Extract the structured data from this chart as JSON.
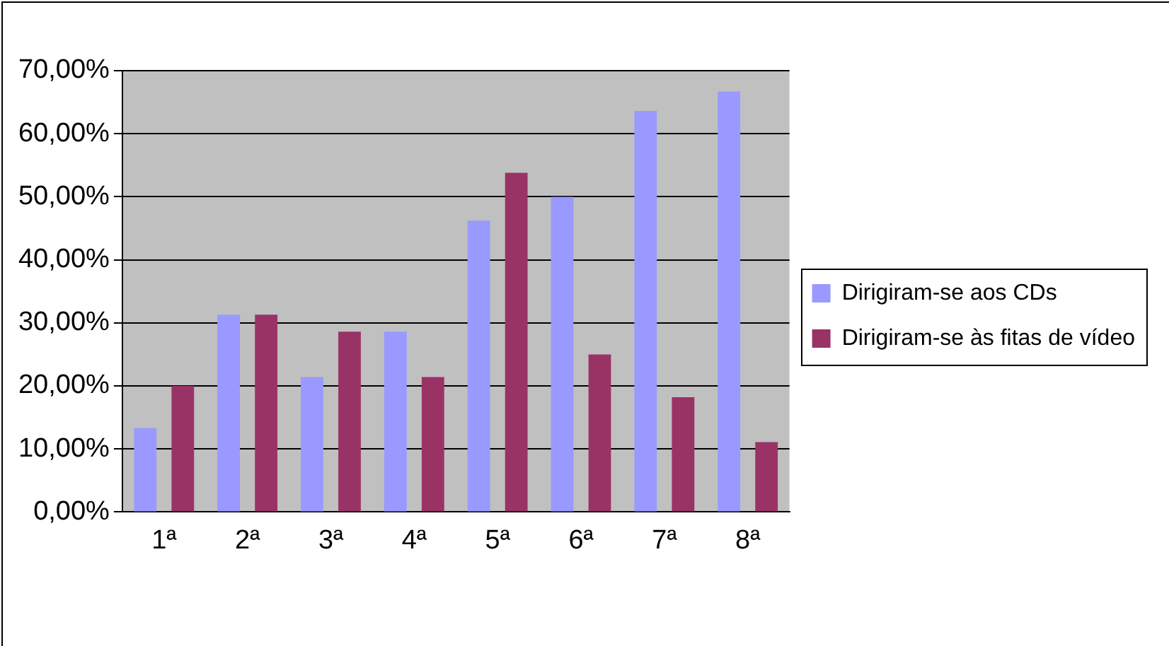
{
  "chart_data": {
    "type": "bar",
    "categories": [
      "1ª",
      "2ª",
      "3ª",
      "4ª",
      "5ª",
      "6ª",
      "7ª",
      "8ª"
    ],
    "series": [
      {
        "name": "Dirigiram-se aos CDs",
        "color": "#9999ff",
        "values": [
          13.3,
          31.3,
          21.4,
          28.6,
          46.2,
          50,
          63.6,
          66.7
        ]
      },
      {
        "name": "Dirigiram-se às fitas de vídeo",
        "color": "#993366",
        "values": [
          20,
          31.3,
          28.6,
          21.4,
          53.8,
          25,
          18.2,
          11.1
        ]
      }
    ],
    "ylim": [
      0,
      70
    ],
    "yticks": [
      {
        "value": 0,
        "label": "0,00%"
      },
      {
        "value": 10,
        "label": "10,00%"
      },
      {
        "value": 20,
        "label": "20,00%"
      },
      {
        "value": 30,
        "label": "30,00%"
      },
      {
        "value": 40,
        "label": "40,00%"
      },
      {
        "value": 50,
        "label": "50,00%"
      },
      {
        "value": 60,
        "label": "60,00%"
      },
      {
        "value": 70,
        "label": "70,00%"
      }
    ],
    "grid": "y",
    "legend": "right"
  }
}
